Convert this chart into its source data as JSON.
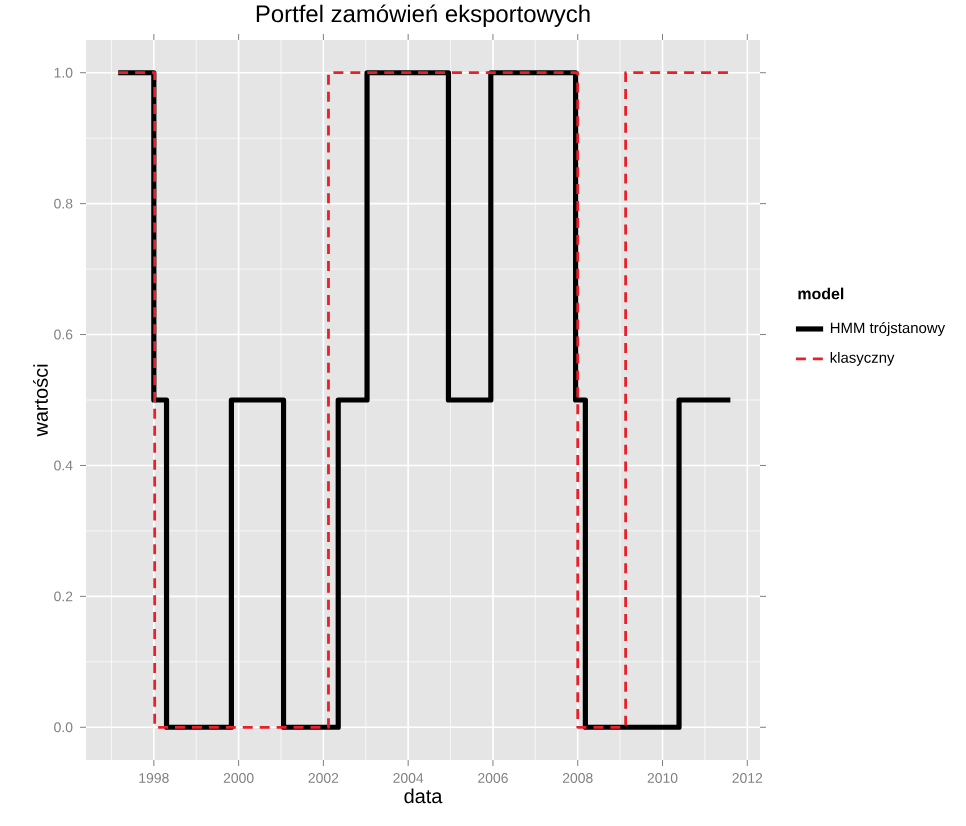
{
  "chart_data": {
    "type": "step",
    "title": "Portfel zamówień eksportowych",
    "xlabel": "data",
    "ylabel": "wartości",
    "legend_title": "model",
    "legend": "right",
    "grid": true,
    "xlim": [
      1996.4,
      2012.3
    ],
    "ylim": [
      -0.05,
      1.05
    ],
    "xticks": [
      1998,
      2000,
      2002,
      2004,
      2006,
      2008,
      2010,
      2012
    ],
    "yticks": [
      {
        "value": 0,
        "label": "0.0"
      },
      {
        "value": 0.2,
        "label": "0.2"
      },
      {
        "value": 0.4,
        "label": "0.4"
      },
      {
        "value": 0.6,
        "label": "0.6"
      },
      {
        "value": 0.8,
        "label": "0.8"
      },
      {
        "value": 1,
        "label": "1.0"
      }
    ],
    "series": [
      {
        "name": "HMM trójstanowy",
        "color": "#000000",
        "line_style": "solid",
        "x": [
          1997.16,
          1998.0,
          1998.3,
          1999.83,
          2001.06,
          2002.35,
          2003.03,
          2004.95,
          2005.95,
          2007.95,
          2008.18,
          2010.39,
          2011.6
        ],
        "values": [
          1,
          0.5,
          0,
          0.5,
          0,
          0.5,
          1,
          0.5,
          1,
          0.5,
          0,
          0.5,
          0.5
        ]
      },
      {
        "name": "klasyczny",
        "color": "#e8202a",
        "line_style": "dashed",
        "x": [
          1997.16,
          1998.02,
          2002.12,
          2008.0,
          2009.13,
          2011.62
        ],
        "values": [
          1,
          0,
          1,
          0,
          1,
          1
        ]
      }
    ]
  }
}
